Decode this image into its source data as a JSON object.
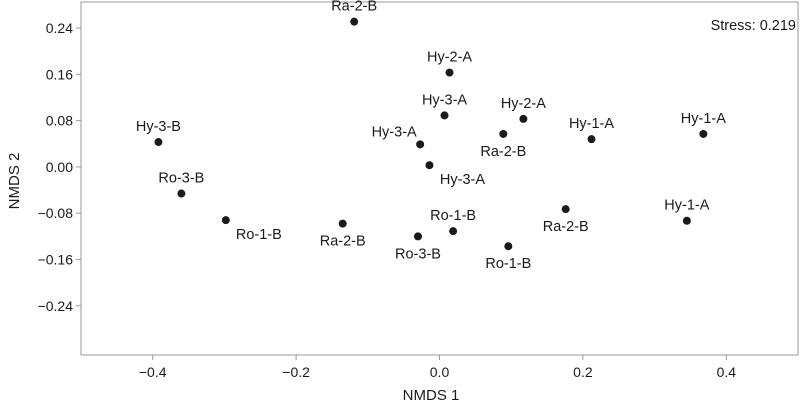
{
  "chart_data": {
    "type": "scatter",
    "xlabel": "NMDS 1",
    "ylabel": "NMDS 2",
    "xlim": [
      -0.5,
      0.5
    ],
    "ylim": [
      -0.325,
      0.285
    ],
    "x_ticks": [
      -0.4,
      -0.2,
      0.0,
      0.2,
      0.4
    ],
    "x_tick_labels": [
      "−0.4",
      "−0.2",
      "0.0",
      "0.2",
      "0.4"
    ],
    "y_ticks": [
      0.24,
      0.16,
      0.08,
      0.0,
      -0.08,
      -0.16,
      -0.24
    ],
    "y_tick_labels": [
      "0.24",
      "0.16",
      "0.08",
      "0.00",
      "−0.08",
      "−0.16",
      "−0.24"
    ],
    "annotation": "Stress: 0.219",
    "grid": false,
    "marker_color": "#1a1a1a",
    "points": [
      {
        "label": "Ra-2-B",
        "x": -0.119,
        "y": 0.251,
        "label_pos": "above"
      },
      {
        "label": "Hy-2-A",
        "x": 0.014,
        "y": 0.163,
        "label_pos": "above"
      },
      {
        "label": "Hy-3-A",
        "x": 0.007,
        "y": 0.089,
        "label_pos": "above"
      },
      {
        "label": "Hy-2-A",
        "x": 0.117,
        "y": 0.083,
        "label_pos": "above"
      },
      {
        "label": "Ra-2-B",
        "x": 0.089,
        "y": 0.057,
        "label_pos": "below"
      },
      {
        "label": "Hy-1-A",
        "x": 0.212,
        "y": 0.048,
        "label_pos": "above"
      },
      {
        "label": "Hy-1-A",
        "x": 0.368,
        "y": 0.057,
        "label_pos": "above"
      },
      {
        "label": "Hy-3-A",
        "x": -0.027,
        "y": 0.039,
        "label_pos": "upper-left"
      },
      {
        "label": "Hy-3-A",
        "x": -0.014,
        "y": 0.003,
        "label_pos": "below-right"
      },
      {
        "label": "Hy-3-B",
        "x": -0.392,
        "y": 0.043,
        "label_pos": "above"
      },
      {
        "label": "Ro-3-B",
        "x": -0.36,
        "y": -0.046,
        "label_pos": "above"
      },
      {
        "label": "Ro-1-B",
        "x": -0.298,
        "y": -0.092,
        "label_pos": "below-right"
      },
      {
        "label": "Ra-2-B",
        "x": -0.135,
        "y": -0.098,
        "label_pos": "below"
      },
      {
        "label": "Ro-3-B",
        "x": -0.03,
        "y": -0.12,
        "label_pos": "below"
      },
      {
        "label": "Ro-1-B",
        "x": 0.019,
        "y": -0.111,
        "label_pos": "above"
      },
      {
        "label": "Ro-1-B",
        "x": 0.096,
        "y": -0.137,
        "label_pos": "below"
      },
      {
        "label": "Ra-2-B",
        "x": 0.176,
        "y": -0.073,
        "label_pos": "below"
      },
      {
        "label": "Hy-1-A",
        "x": 0.345,
        "y": -0.093,
        "label_pos": "above"
      }
    ]
  }
}
